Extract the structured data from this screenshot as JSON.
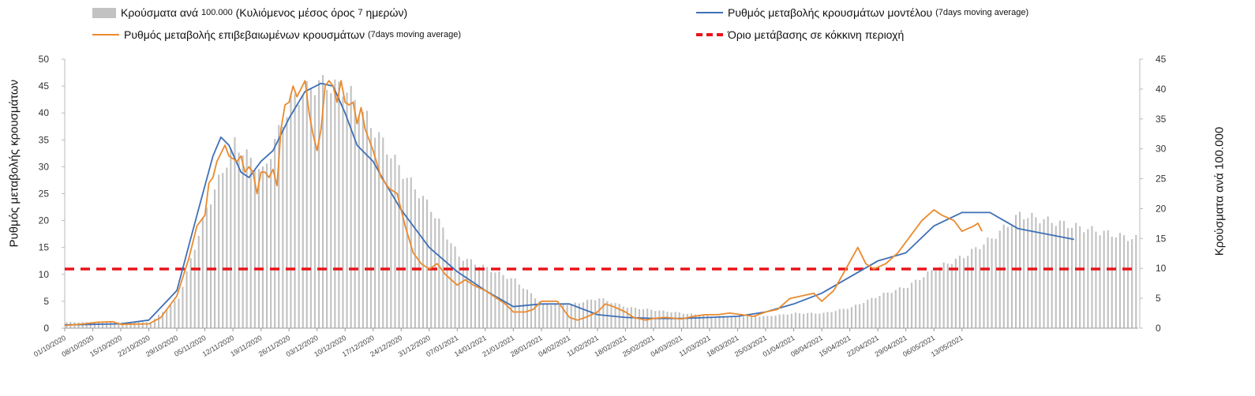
{
  "legend": {
    "bars_label": "Κρούσματα ανά",
    "bars_small": "100.000",
    "bars_label2": "(Κυλιόμενος μέσος όρος",
    "bars_small2": "7",
    "bars_label3": "ημερών)",
    "model_label": "Ρυθμός μεταβολής κρουσμάτων μοντέλου",
    "model_small": "(7days moving average)",
    "confirmed_label": "Ρυθμός μεταβολής επιβεβαιωμένων κρουσμάτων",
    "confirmed_small": "(7days moving average)",
    "threshold_label": "Όριο μετάβασης σε κόκκινη περιοχή"
  },
  "colors": {
    "bars": "#c2c2c2",
    "model": "#3f6fb5",
    "confirmed": "#ea8a2e",
    "threshold": "#e8141a",
    "grid": "#cfcfcf"
  },
  "chart_data": {
    "type": "bar+line",
    "ylabel_left": "Ρυθμός μεταβολής κρουσμάτων",
    "ylabel_right": "Κρούσματα ανά 100.000",
    "ylim_left": [
      0,
      50
    ],
    "ylim_right": [
      0,
      45
    ],
    "yticks_left": [
      "0",
      "5",
      "10",
      "15",
      "20",
      "25",
      "30",
      "35",
      "40",
      "45",
      "50"
    ],
    "yticks_right": [
      "0",
      "5",
      "10",
      "15",
      "20",
      "25",
      "30",
      "35",
      "40",
      "45"
    ],
    "threshold": 11,
    "x_tick_labels": [
      "01/10/2020",
      "08/10/2020",
      "15/10/2020",
      "22/10/2020",
      "29/10/2020",
      "05/11/2020",
      "12/11/2020",
      "19/11/2020",
      "26/11/2020",
      "03/12/2020",
      "10/12/2020",
      "17/12/2020",
      "24/12/2020",
      "31/12/2020",
      "07/01/2021",
      "14/01/2021",
      "21/01/2021",
      "28/01/2021",
      "04/02/2021",
      "11/02/2021",
      "18/02/2021",
      "25/02/2021",
      "04/03/2021",
      "11/03/2021",
      "18/03/2021",
      "25/03/2021",
      "01/04/2021",
      "08/04/2021",
      "15/04/2021",
      "22/04/2021",
      "29/04/2021",
      "06/05/2021",
      "13/05/2021"
    ],
    "series": [
      {
        "name": "Κρούσματα ανά 100.000 (Κυλιόμενος μέσος όρος 7 ημερών)",
        "axis": "right",
        "type": "bar",
        "anchors": [
          [
            0,
            1
          ],
          [
            7,
            1
          ],
          [
            14,
            1
          ],
          [
            21,
            1
          ],
          [
            28,
            5
          ],
          [
            35,
            20
          ],
          [
            42,
            31
          ],
          [
            49,
            26
          ],
          [
            56,
            38
          ],
          [
            63,
            41
          ],
          [
            70,
            40
          ],
          [
            77,
            33
          ],
          [
            84,
            26
          ],
          [
            91,
            20
          ],
          [
            98,
            12
          ],
          [
            105,
            10
          ],
          [
            112,
            8
          ],
          [
            119,
            4
          ],
          [
            126,
            4
          ],
          [
            133,
            5
          ],
          [
            140,
            3.5
          ],
          [
            147,
            3
          ],
          [
            154,
            2.5
          ],
          [
            161,
            2
          ],
          [
            168,
            2
          ],
          [
            175,
            2
          ],
          [
            182,
            2.5
          ],
          [
            189,
            2.5
          ],
          [
            196,
            3.5
          ],
          [
            203,
            5.5
          ],
          [
            210,
            7
          ],
          [
            217,
            10
          ],
          [
            224,
            12
          ],
          [
            231,
            15
          ],
          [
            238,
            19
          ],
          [
            245,
            18
          ],
          [
            252,
            17
          ],
          [
            259,
            16
          ],
          [
            266,
            15
          ]
        ]
      },
      {
        "name": "Ρυθμός μεταβολής κρουσμάτων μοντέλου",
        "axis": "left",
        "type": "line",
        "anchors": [
          [
            0,
            0.6
          ],
          [
            7,
            0.7
          ],
          [
            14,
            0.8
          ],
          [
            21,
            1.5
          ],
          [
            28,
            7
          ],
          [
            33,
            21
          ],
          [
            37,
            32
          ],
          [
            39,
            35.5
          ],
          [
            41,
            34
          ],
          [
            44,
            29
          ],
          [
            46,
            28
          ],
          [
            49,
            31
          ],
          [
            52,
            33
          ],
          [
            56,
            39
          ],
          [
            60,
            44
          ],
          [
            64,
            45.5
          ],
          [
            67,
            45
          ],
          [
            70,
            40
          ],
          [
            73,
            34
          ],
          [
            77,
            31
          ],
          [
            80,
            27
          ],
          [
            84,
            22
          ],
          [
            91,
            15
          ],
          [
            98,
            10.5
          ],
          [
            105,
            7
          ],
          [
            112,
            4
          ],
          [
            119,
            4.5
          ],
          [
            126,
            4.5
          ],
          [
            133,
            2.5
          ],
          [
            140,
            2
          ],
          [
            147,
            1.8
          ],
          [
            154,
            1.8
          ],
          [
            161,
            2
          ],
          [
            168,
            2.2
          ],
          [
            175,
            3
          ],
          [
            182,
            4.5
          ],
          [
            189,
            6.5
          ],
          [
            196,
            9.5
          ],
          [
            203,
            12.5
          ],
          [
            210,
            14
          ],
          [
            217,
            19
          ],
          [
            224,
            21.5
          ],
          [
            231,
            21.5
          ],
          [
            238,
            18.5
          ],
          [
            245,
            17.5
          ],
          [
            252,
            16.5
          ]
        ]
      },
      {
        "name": "Ρυθμός μεταβολής επιβεβαιωμένων κρουσμάτων",
        "axis": "left",
        "type": "line",
        "anchors": [
          [
            0,
            0.5
          ],
          [
            5,
            0.8
          ],
          [
            8,
            1.1
          ],
          [
            12,
            1.2
          ],
          [
            14,
            0.7
          ],
          [
            21,
            0.8
          ],
          [
            24,
            2
          ],
          [
            28,
            6
          ],
          [
            31,
            13
          ],
          [
            33,
            19
          ],
          [
            35,
            21
          ],
          [
            36,
            27
          ],
          [
            37,
            28
          ],
          [
            38,
            31
          ],
          [
            40,
            34
          ],
          [
            41,
            32
          ],
          [
            43,
            31
          ],
          [
            44,
            32
          ],
          [
            45,
            29
          ],
          [
            46,
            30
          ],
          [
            47,
            29
          ],
          [
            48,
            25
          ],
          [
            49,
            29
          ],
          [
            50,
            29
          ],
          [
            51,
            28
          ],
          [
            52,
            29.5
          ],
          [
            53,
            26.5
          ],
          [
            54,
            37
          ],
          [
            55,
            41.5
          ],
          [
            56,
            42
          ],
          [
            57,
            45
          ],
          [
            58,
            43
          ],
          [
            60,
            46
          ],
          [
            61,
            40
          ],
          [
            62,
            36
          ],
          [
            63,
            33
          ],
          [
            64,
            37
          ],
          [
            65,
            45
          ],
          [
            66,
            46
          ],
          [
            67,
            45
          ],
          [
            68,
            42
          ],
          [
            69,
            46
          ],
          [
            70,
            42
          ],
          [
            71,
            41.5
          ],
          [
            72,
            42
          ],
          [
            73,
            38
          ],
          [
            74,
            41
          ],
          [
            75,
            37
          ],
          [
            76,
            35
          ],
          [
            77,
            33
          ],
          [
            79,
            28
          ],
          [
            81,
            26
          ],
          [
            83,
            25
          ],
          [
            85,
            19
          ],
          [
            87,
            14
          ],
          [
            89,
            12
          ],
          [
            91,
            11
          ],
          [
            93,
            12
          ],
          [
            95,
            10
          ],
          [
            98,
            8
          ],
          [
            100,
            9
          ],
          [
            102,
            8
          ],
          [
            105,
            7
          ],
          [
            107,
            6
          ],
          [
            110,
            4.5
          ],
          [
            112,
            3
          ],
          [
            115,
            3
          ],
          [
            117,
            3.5
          ],
          [
            119,
            5
          ],
          [
            121,
            5
          ],
          [
            123,
            5
          ],
          [
            126,
            2
          ],
          [
            128,
            1.5
          ],
          [
            130,
            2
          ],
          [
            133,
            3
          ],
          [
            135,
            4.5
          ],
          [
            137,
            4
          ],
          [
            140,
            3
          ],
          [
            142,
            2
          ],
          [
            145,
            1.5
          ],
          [
            147,
            1.8
          ],
          [
            150,
            2
          ],
          [
            154,
            1.7
          ],
          [
            157,
            2.2
          ],
          [
            160,
            2.5
          ],
          [
            163,
            2.5
          ],
          [
            166,
            2.8
          ],
          [
            169,
            2.5
          ],
          [
            172,
            2.2
          ],
          [
            175,
            3
          ],
          [
            178,
            3.5
          ],
          [
            181,
            5.5
          ],
          [
            184,
            6
          ],
          [
            187,
            6.5
          ],
          [
            189,
            5
          ],
          [
            192,
            7
          ],
          [
            195,
            11
          ],
          [
            198,
            15
          ],
          [
            200,
            12
          ],
          [
            202,
            11
          ],
          [
            205,
            12
          ],
          [
            208,
            14
          ],
          [
            211,
            17
          ],
          [
            214,
            20
          ],
          [
            217,
            22
          ],
          [
            219,
            21
          ],
          [
            222,
            20
          ],
          [
            224,
            18
          ],
          [
            227,
            19
          ],
          [
            228,
            19.5
          ],
          [
            229,
            18
          ]
        ]
      }
    ]
  }
}
